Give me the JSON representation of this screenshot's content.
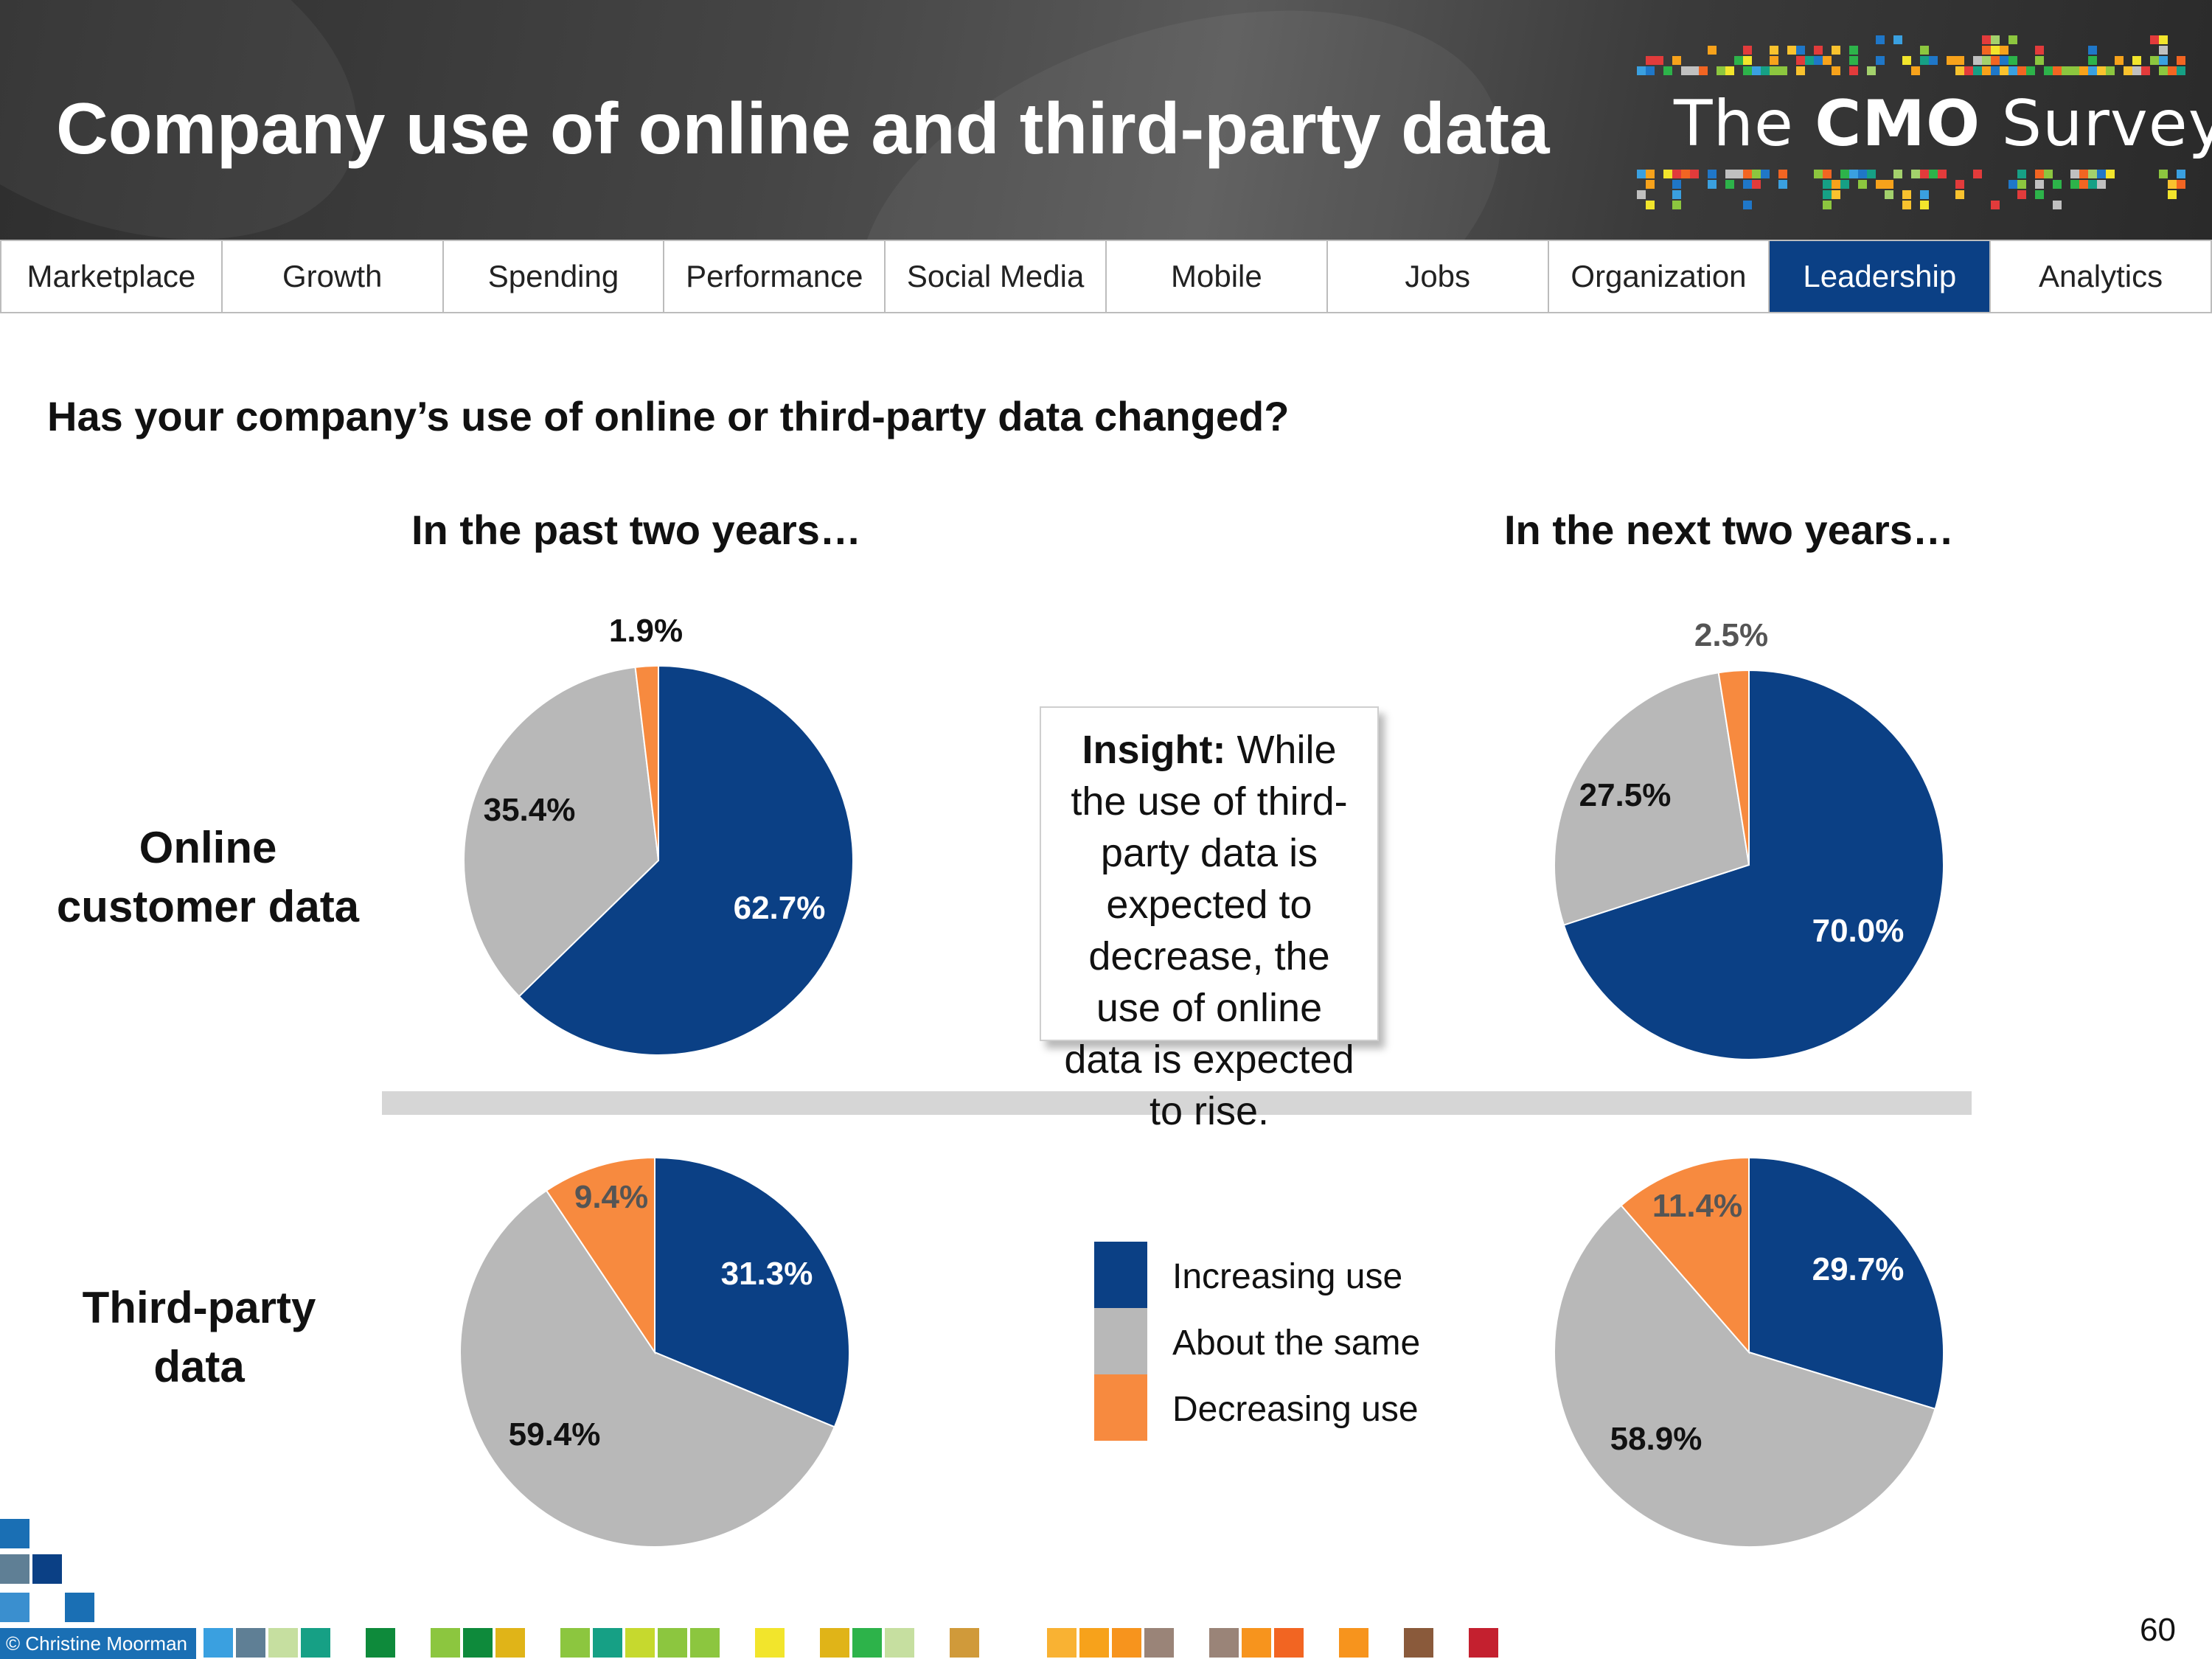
{
  "header": {
    "title": "Company use of online and third-party data",
    "logo_prefix": "The ",
    "logo_bold": "CMO",
    "logo_suffix": " Survey"
  },
  "nav": {
    "tabs": [
      "Marketplace",
      "Growth",
      "Spending",
      "Performance",
      "Social Media",
      "Mobile",
      "Jobs",
      "Organization",
      "Leadership",
      "Analytics"
    ],
    "active": "Leadership"
  },
  "question": "Has your company’s use of online or third-party data changed?",
  "columns": {
    "past": "In the past two years…",
    "next": "In the next two years…"
  },
  "rows": {
    "online": "Online customer data",
    "third_party": "Third-party data"
  },
  "insight": {
    "lead": "Insight:",
    "text": "While the use of third-party data is expected to decrease, the use of online data is expected to rise."
  },
  "legend": [
    "Increasing use",
    "About the same",
    "Decreasing use"
  ],
  "colors": {
    "increasing": "#0b4085",
    "same": "#b8b8b8",
    "decreasing": "#f78a3f",
    "active_tab": "#0b4085"
  },
  "chart_data": [
    {
      "type": "pie",
      "title": "Online customer data — In the past two years…",
      "categories": [
        "Increasing use",
        "About the same",
        "Decreasing use"
      ],
      "values": [
        62.7,
        35.4,
        1.9
      ],
      "labels": [
        "62.7%",
        "35.4%",
        "1.9%"
      ]
    },
    {
      "type": "pie",
      "title": "Online customer data — In the next two years…",
      "categories": [
        "Increasing use",
        "About the same",
        "Decreasing use"
      ],
      "values": [
        70.0,
        27.5,
        2.5
      ],
      "labels": [
        "70.0%",
        "27.5%",
        "2.5%"
      ]
    },
    {
      "type": "pie",
      "title": "Third-party data — In the past two years…",
      "categories": [
        "Increasing use",
        "About the same",
        "Decreasing use"
      ],
      "values": [
        31.3,
        59.4,
        9.4
      ],
      "labels": [
        "31.3%",
        "59.4%",
        "9.4%"
      ]
    },
    {
      "type": "pie",
      "title": "Third-party data — In the next two years…",
      "categories": [
        "Increasing use",
        "About the same",
        "Decreasing use"
      ],
      "values": [
        29.7,
        58.9,
        11.4
      ],
      "labels": [
        "29.7%",
        "58.9%",
        "11.4%"
      ]
    }
  ],
  "footer": {
    "copyright": "© Christine Moorman",
    "page_number": "60"
  }
}
